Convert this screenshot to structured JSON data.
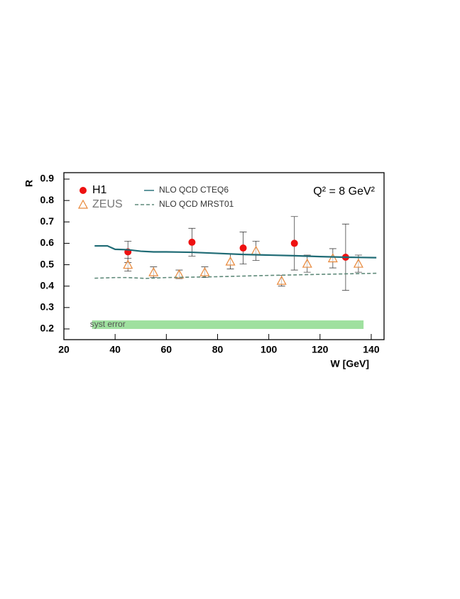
{
  "chart_data": {
    "type": "scatter",
    "xlabel": "W [GeV]",
    "ylabel": "R",
    "annotation": "Q² = 8 GeV²",
    "xlim": [
      20,
      145
    ],
    "xticks": [
      20,
      40,
      60,
      80,
      100,
      120,
      140
    ],
    "ylim": [
      0.15,
      0.93
    ],
    "yticks": [
      0.2,
      0.3,
      0.4,
      0.5,
      0.6,
      0.7,
      0.8,
      0.9
    ],
    "series": [
      {
        "name": "H1",
        "kind": "points",
        "marker": "dot",
        "color": "#ee1111",
        "x": [
          45,
          70,
          90,
          110,
          130
        ],
        "values": [
          0.56,
          0.605,
          0.578,
          0.6,
          0.535
        ],
        "errors": [
          0.05,
          0.065,
          0.075,
          0.125,
          0.155
        ]
      },
      {
        "name": "ZEUS",
        "kind": "points",
        "marker": "triangle",
        "color": "#e8883a",
        "x": [
          45,
          55,
          65,
          75,
          85,
          95,
          105,
          115,
          125,
          135
        ],
        "values": [
          0.5,
          0.465,
          0.455,
          0.465,
          0.515,
          0.565,
          0.425,
          0.505,
          0.53,
          0.505
        ],
        "errors": [
          0.03,
          0.025,
          0.02,
          0.025,
          0.035,
          0.045,
          0.025,
          0.04,
          0.045,
          0.04
        ]
      },
      {
        "name": "NLO QCD CTEQ6",
        "kind": "line",
        "style": "solid",
        "color": "#1f6b75",
        "x": [
          32,
          37,
          40,
          45,
          50,
          55,
          60,
          70,
          80,
          90,
          100,
          110,
          120,
          130,
          142
        ],
        "values": [
          0.588,
          0.588,
          0.572,
          0.57,
          0.563,
          0.56,
          0.56,
          0.558,
          0.553,
          0.548,
          0.545,
          0.542,
          0.538,
          0.535,
          0.533
        ]
      },
      {
        "name": "NLO QCD MRST01",
        "kind": "line",
        "style": "dashed",
        "color": "#5f8a7a",
        "x": [
          32,
          40,
          45,
          52,
          60,
          80,
          100,
          120,
          142
        ],
        "values": [
          0.437,
          0.44,
          0.44,
          0.436,
          0.44,
          0.444,
          0.45,
          0.455,
          0.46
        ]
      }
    ],
    "syst_band": {
      "label": "syst error",
      "color": "#7fd67f",
      "x": [
        31,
        137
      ],
      "y": [
        0.2,
        0.24
      ]
    }
  }
}
